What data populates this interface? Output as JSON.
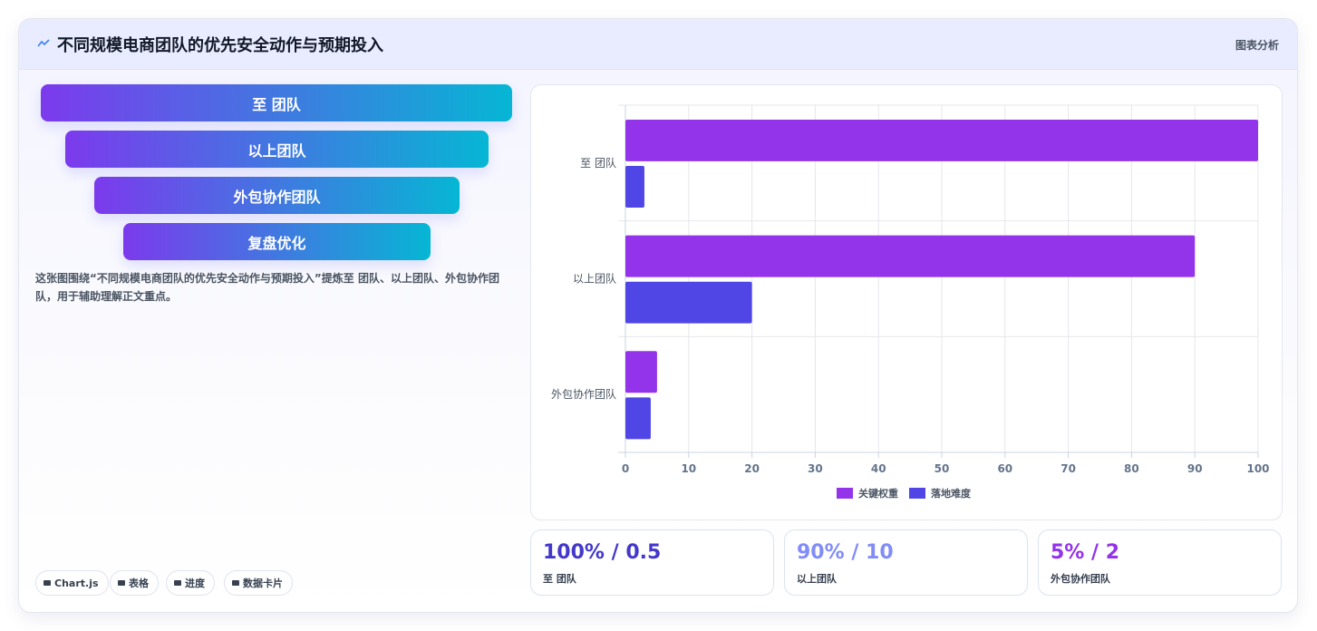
{
  "header": {
    "title": "不同规模电商团队的优先安全动作与预期投入",
    "badge": "图表分析"
  },
  "funnel": {
    "steps": [
      "至 团队",
      "以上团队",
      "外包协作团队",
      "复盘优化"
    ]
  },
  "description": "这张图围绕“不同规模电商团队的优先安全动作与预期投入”提炼至 团队、以上团队、外包协作团队，用于辅助理解正文重点。",
  "tags": [
    "Chart.js",
    "表格",
    "进度",
    "数据卡片"
  ],
  "chart_data": {
    "type": "bar",
    "orientation": "horizontal",
    "categories": [
      "至 团队",
      "以上团队",
      "外包协作团队"
    ],
    "series": [
      {
        "name": "关键权重",
        "color": "#9333ea",
        "values": [
          100,
          90,
          5
        ]
      },
      {
        "name": "落地难度",
        "color": "#4f46e5",
        "values": [
          3,
          20,
          4
        ]
      }
    ],
    "xlim": [
      0,
      100
    ],
    "xticks": [
      0,
      10,
      20,
      30,
      40,
      50,
      60,
      70,
      80,
      90,
      100
    ],
    "grid": true,
    "legend": "bottom"
  },
  "stats": [
    {
      "value": "100% / 0.5",
      "label": "至 团队",
      "color": "#4338ca"
    },
    {
      "value": "90% / 10",
      "label": "以上团队",
      "color": "#818cf8"
    },
    {
      "value": "5% / 2",
      "label": "外包协作团队",
      "color": "#9333ea"
    }
  ]
}
